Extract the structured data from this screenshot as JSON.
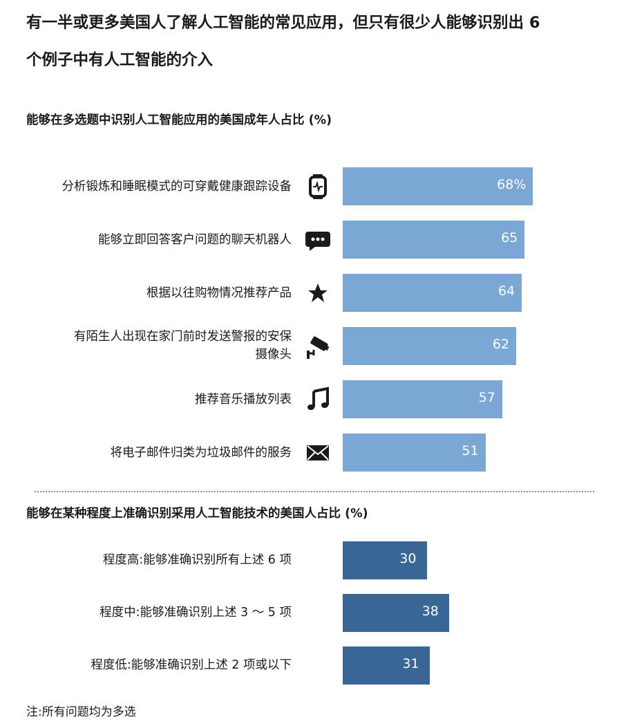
{
  "title_lines": [
    "有一半或更多美国人了解人工智能的常见应用，但只有很少人能够识别出 6",
    "个例子中有人工智能的介入"
  ],
  "note": "注:所有问题均为多选",
  "colors": {
    "bar_top": "#7ba7d4",
    "bar_bottom": "#3a6696",
    "icon": "#1a1a1a"
  },
  "chart_data": [
    {
      "type": "bar",
      "orientation": "horizontal",
      "title": "能够在多选题中识别人工智能应用的美国成年人占比 (%)",
      "categories": [
        "分析锻炼和睡眠模式的可穿戴健康跟踪设备",
        "能够立即回答客户问题的聊天机器人",
        "根据以往购物情况推荐产品",
        "有陌生人出现在家门前时发送警报的安保摄像头",
        "推荐音乐播放列表",
        "将电子邮件归类为垃圾邮件的服务"
      ],
      "category_lines": [
        [
          "分析锻炼和睡眠模式的可穿戴健康跟踪设备"
        ],
        [
          "能够立即回答客户问题的聊天机器人"
        ],
        [
          "根据以往购物情况推荐产品"
        ],
        [
          "有陌生人出现在家门前时发送警报的安保",
          "摄像头"
        ],
        [
          "推荐音乐播放列表"
        ],
        [
          "将电子邮件归类为垃圾邮件的服务"
        ]
      ],
      "icons": [
        "smartwatch-icon",
        "chat-bubble-icon",
        "star-icon",
        "security-camera-icon",
        "music-note-icon",
        "envelope-icon"
      ],
      "values": [
        68,
        65,
        64,
        62,
        57,
        51
      ],
      "value_labels": [
        "68%",
        "65",
        "64",
        "62",
        "57",
        "51"
      ]
    },
    {
      "type": "bar",
      "orientation": "horizontal",
      "title": "能够在某种程度上准确识别采用人工智能技术的美国人占比 (%)",
      "categories": [
        "程度高:能够准确识别所有上述 6 项",
        "程度中:能够准确识别上述 3 ～ 5 项",
        "程度低:能够准确识别上述 2 项或以下"
      ],
      "values": [
        30,
        38,
        31
      ],
      "value_labels": [
        "30",
        "38",
        "31"
      ]
    }
  ]
}
